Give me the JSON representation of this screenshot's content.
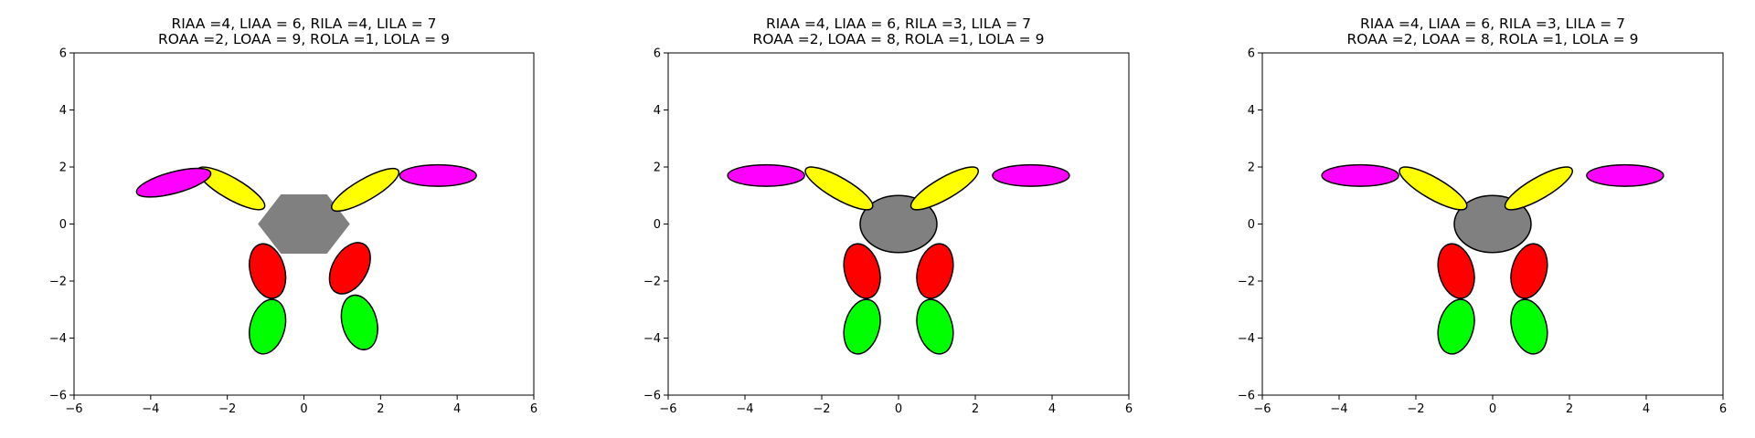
{
  "chart_data": [
    {
      "type": "scatter",
      "title_lines": [
        "RIAA =4, LIAA = 6, RILA =4, LILA = 7",
        "ROAA =2, LOAA = 9, ROLA =1, LOLA = 9"
      ],
      "xlim": [
        -6,
        6
      ],
      "ylim": [
        -6,
        6
      ],
      "xticks": [
        -6,
        -4,
        -2,
        0,
        2,
        4,
        6
      ],
      "yticks": [
        -6,
        -4,
        -2,
        0,
        2,
        4,
        6
      ],
      "x_tick_labels": [
        "−6",
        "−4",
        "−2",
        "0",
        "2",
        "4",
        "6"
      ],
      "y_tick_labels": [
        "−6",
        "−4",
        "−2",
        "0",
        "2",
        "4",
        "6"
      ],
      "grid": false,
      "body": {
        "shape": "hexagon",
        "cx": 0,
        "cy": 0,
        "r": 1.2,
        "color": "#808080",
        "outlined": false
      },
      "limbs": [
        {
          "cx": -1.9,
          "cy": 1.25,
          "w": 2.0,
          "h": 0.75,
          "angle": -30,
          "color": "#ffff00"
        },
        {
          "cx": 1.6,
          "cy": 1.2,
          "w": 2.0,
          "h": 0.75,
          "angle": 30,
          "color": "#ffff00"
        },
        {
          "cx": -3.4,
          "cy": 1.45,
          "w": 2.0,
          "h": 0.75,
          "angle": 15,
          "color": "#ff00ff"
        },
        {
          "cx": 3.5,
          "cy": 1.7,
          "w": 2.0,
          "h": 0.75,
          "angle": 0,
          "color": "#ff00ff"
        },
        {
          "cx": -0.95,
          "cy": -1.65,
          "w": 0.9,
          "h": 1.95,
          "angle": 15,
          "color": "#ff0000"
        },
        {
          "cx": 1.2,
          "cy": -1.55,
          "w": 0.9,
          "h": 1.95,
          "angle": -30,
          "color": "#ff0000"
        },
        {
          "cx": -0.95,
          "cy": -3.6,
          "w": 0.9,
          "h": 1.95,
          "angle": -15,
          "color": "#00ff00"
        },
        {
          "cx": 1.45,
          "cy": -3.45,
          "w": 0.9,
          "h": 1.95,
          "angle": 15,
          "color": "#00ff00"
        }
      ]
    },
    {
      "type": "scatter",
      "title_lines": [
        "RIAA =4, LIAA = 6, RILA =3, LILA = 7",
        "ROAA =2, LOAA = 8, ROLA =1, LOLA = 9"
      ],
      "xlim": [
        -6,
        6
      ],
      "ylim": [
        -6,
        6
      ],
      "xticks": [
        -6,
        -4,
        -2,
        0,
        2,
        4,
        6
      ],
      "yticks": [
        -6,
        -4,
        -2,
        0,
        2,
        4,
        6
      ],
      "x_tick_labels": [
        "−6",
        "−4",
        "−2",
        "0",
        "2",
        "4",
        "6"
      ],
      "y_tick_labels": [
        "−6",
        "−4",
        "−2",
        "0",
        "2",
        "4",
        "6"
      ],
      "grid": false,
      "body": {
        "shape": "ellipse",
        "cx": 0,
        "cy": 0,
        "rx": 1.0,
        "ry": 1.0,
        "color": "#808080",
        "outlined": true
      },
      "limbs": [
        {
          "cx": -1.55,
          "cy": 1.25,
          "w": 2.0,
          "h": 0.75,
          "angle": -30,
          "color": "#ffff00"
        },
        {
          "cx": 1.2,
          "cy": 1.25,
          "w": 2.0,
          "h": 0.75,
          "angle": 30,
          "color": "#ffff00"
        },
        {
          "cx": -3.45,
          "cy": 1.7,
          "w": 2.0,
          "h": 0.75,
          "angle": 0,
          "color": "#ff00ff"
        },
        {
          "cx": 3.45,
          "cy": 1.7,
          "w": 2.0,
          "h": 0.75,
          "angle": 0,
          "color": "#ff00ff"
        },
        {
          "cx": -0.95,
          "cy": -1.65,
          "w": 0.9,
          "h": 1.95,
          "angle": 15,
          "color": "#ff0000"
        },
        {
          "cx": 0.95,
          "cy": -1.65,
          "w": 0.9,
          "h": 1.95,
          "angle": -15,
          "color": "#ff0000"
        },
        {
          "cx": -0.95,
          "cy": -3.6,
          "w": 0.9,
          "h": 1.95,
          "angle": -15,
          "color": "#00ff00"
        },
        {
          "cx": 0.95,
          "cy": -3.6,
          "w": 0.9,
          "h": 1.95,
          "angle": 15,
          "color": "#00ff00"
        }
      ]
    },
    {
      "type": "scatter",
      "title_lines": [
        "RIAA =4, LIAA = 6, RILA =3, LILA = 7",
        "ROAA =2, LOAA = 8, ROLA =1, LOLA = 9"
      ],
      "xlim": [
        -6,
        6
      ],
      "ylim": [
        -6,
        6
      ],
      "xticks": [
        -6,
        -4,
        -2,
        0,
        2,
        4,
        6
      ],
      "yticks": [
        -6,
        -4,
        -2,
        0,
        2,
        4,
        6
      ],
      "x_tick_labels": [
        "−6",
        "−4",
        "−2",
        "0",
        "2",
        "4",
        "6"
      ],
      "y_tick_labels": [
        "−6",
        "−4",
        "−2",
        "0",
        "2",
        "4",
        "6"
      ],
      "grid": false,
      "body": {
        "shape": "ellipse",
        "cx": 0,
        "cy": 0,
        "rx": 1.0,
        "ry": 1.0,
        "color": "#808080",
        "outlined": true
      },
      "limbs": [
        {
          "cx": -1.55,
          "cy": 1.25,
          "w": 2.0,
          "h": 0.75,
          "angle": -30,
          "color": "#ffff00"
        },
        {
          "cx": 1.2,
          "cy": 1.25,
          "w": 2.0,
          "h": 0.75,
          "angle": 30,
          "color": "#ffff00"
        },
        {
          "cx": -3.45,
          "cy": 1.7,
          "w": 2.0,
          "h": 0.75,
          "angle": 0,
          "color": "#ff00ff"
        },
        {
          "cx": 3.45,
          "cy": 1.7,
          "w": 2.0,
          "h": 0.75,
          "angle": 0,
          "color": "#ff00ff"
        },
        {
          "cx": -0.95,
          "cy": -1.65,
          "w": 0.9,
          "h": 1.95,
          "angle": 15,
          "color": "#ff0000"
        },
        {
          "cx": 0.95,
          "cy": -1.65,
          "w": 0.9,
          "h": 1.95,
          "angle": -15,
          "color": "#ff0000"
        },
        {
          "cx": -0.95,
          "cy": -3.6,
          "w": 0.9,
          "h": 1.95,
          "angle": -15,
          "color": "#00ff00"
        },
        {
          "cx": 0.95,
          "cy": -3.6,
          "w": 0.9,
          "h": 1.95,
          "angle": 15,
          "color": "#00ff00"
        }
      ]
    }
  ]
}
